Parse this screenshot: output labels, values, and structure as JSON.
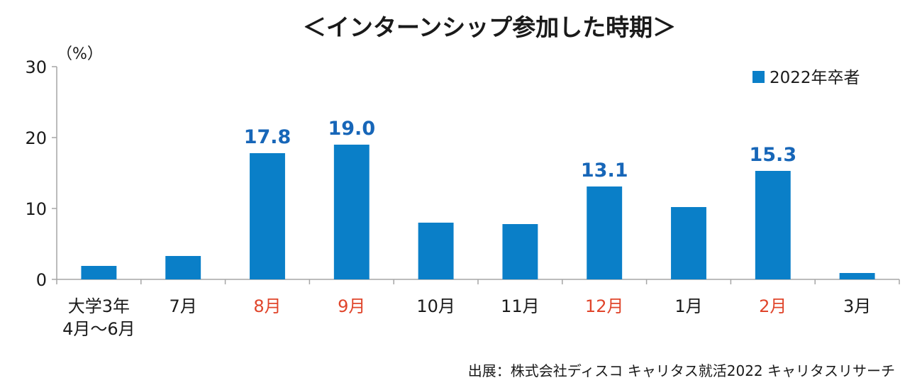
{
  "chart_data": {
    "type": "bar",
    "title": "＜インターンシップ参加した時期＞",
    "unit_label": "（%）",
    "categories": [
      [
        "大学3年",
        "4月〜6月"
      ],
      [
        "7月"
      ],
      [
        "8月"
      ],
      [
        "9月"
      ],
      [
        "10月"
      ],
      [
        "11月"
      ],
      [
        "12月"
      ],
      [
        "1月"
      ],
      [
        "2月"
      ],
      [
        "3月"
      ]
    ],
    "highlighted_categories": [
      2,
      3,
      6,
      8
    ],
    "series": [
      {
        "name": "2022年卒者",
        "values": [
          1.9,
          3.3,
          17.8,
          19.0,
          8.0,
          7.8,
          13.1,
          10.2,
          15.3,
          0.9
        ],
        "data_labels": [
          null,
          null,
          "17.8",
          "19.0",
          null,
          null,
          "13.1",
          null,
          "15.3",
          null
        ]
      }
    ],
    "ylim": [
      0,
      30
    ],
    "yticks": [
      "0",
      "10",
      "20",
      "30"
    ],
    "grid": false,
    "legend_position": "top-right"
  },
  "colors": {
    "bar": "#0a7fc8",
    "data_label": "#1766b8",
    "highlight_category": "#e0452b",
    "axis": "#a6a6a6",
    "text": "#1a1a1a"
  },
  "source": "出展：株式会社ディスコ キャリタス就活2022 キャリタスリサーチ"
}
